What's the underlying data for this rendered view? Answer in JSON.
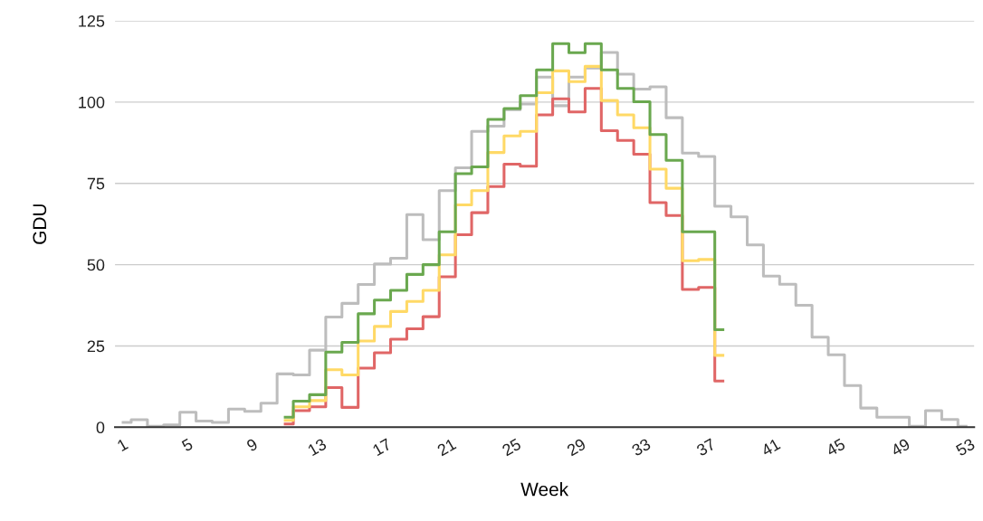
{
  "chart_data": {
    "type": "step",
    "xlabel": "Week",
    "ylabel": "GDU",
    "categories": [
      "1",
      null,
      null,
      null,
      "5",
      null,
      null,
      null,
      "9",
      null,
      null,
      null,
      "13",
      null,
      null,
      null,
      "17",
      null,
      null,
      null,
      "21",
      null,
      null,
      null,
      "25",
      null,
      null,
      null,
      "29",
      null,
      null,
      null,
      "33",
      null,
      null,
      null,
      "37",
      null,
      null,
      null,
      "41",
      null,
      null,
      null,
      "45",
      null,
      null,
      null,
      "49",
      null,
      null,
      null,
      "53"
    ],
    "series": [
      {
        "color": "#bdbdbd",
        "values": [
          1.5,
          2.3,
          0.3,
          0.7,
          4.6,
          1.9,
          1.5,
          5.6,
          4.9,
          7.4,
          16.4,
          16.1,
          23.7,
          33.9,
          38.1,
          43.9,
          50.2,
          52.0,
          65.4,
          57.7,
          72.8,
          79.8,
          91.0,
          92.6,
          97.7,
          99.4,
          107.7,
          98.9,
          107.7,
          110.5,
          115.3,
          108.6,
          104.0,
          104.7,
          95.2,
          84.3,
          83.3,
          68.0,
          64.7,
          56.1,
          46.5,
          44.0,
          37.5,
          27.7,
          22.3,
          12.8,
          5.9,
          3.1,
          3.1,
          0.3,
          5.1,
          2.4,
          0.3
        ]
      },
      {
        "color": "#e06666",
        "values": [
          null,
          null,
          null,
          null,
          null,
          null,
          null,
          null,
          null,
          null,
          1.0,
          5.1,
          6.3,
          12.2,
          6.1,
          18.2,
          22.9,
          27.1,
          30.3,
          34.0,
          46.3,
          59.2,
          66.0,
          74.0,
          80.9,
          80.3,
          96.1,
          101.0,
          97.0,
          104.2,
          91.2,
          88.2,
          84.0,
          69.1,
          65.1,
          42.4,
          43.0,
          14.2,
          null,
          null,
          null,
          null,
          null,
          null,
          null,
          null,
          null,
          null,
          null,
          null,
          null,
          null,
          null
        ]
      },
      {
        "color": "#ffd966",
        "values": [
          null,
          null,
          null,
          null,
          null,
          null,
          null,
          null,
          null,
          null,
          2.1,
          6.3,
          8.2,
          17.7,
          16.1,
          26.5,
          31.0,
          35.6,
          38.7,
          42.1,
          53.0,
          68.4,
          72.8,
          84.5,
          89.6,
          91.0,
          102.9,
          109.6,
          106.3,
          111.0,
          100.5,
          96.1,
          92.1,
          79.4,
          73.5,
          51.2,
          51.6,
          22.1,
          null,
          null,
          null,
          null,
          null,
          null,
          null,
          null,
          null,
          null,
          null,
          null,
          null,
          null,
          null
        ]
      },
      {
        "color": "#6aa84f",
        "values": [
          null,
          null,
          null,
          null,
          null,
          null,
          null,
          null,
          null,
          null,
          3.1,
          8.0,
          10.0,
          23.1,
          26.1,
          34.9,
          39.1,
          42.1,
          47.0,
          50.0,
          60.1,
          78.0,
          80.1,
          94.7,
          98.0,
          102.0,
          109.9,
          118.0,
          115.2,
          118.0,
          109.9,
          104.2,
          100.1,
          90.0,
          82.1,
          60.1,
          60.1,
          30.0,
          null,
          null,
          null,
          null,
          null,
          null,
          null,
          null,
          null,
          null,
          null,
          null,
          null,
          null,
          null
        ]
      }
    ],
    "ylim": [
      0,
      125
    ],
    "yticks": [
      0,
      25,
      50,
      75,
      100,
      125
    ],
    "grid": "y"
  }
}
